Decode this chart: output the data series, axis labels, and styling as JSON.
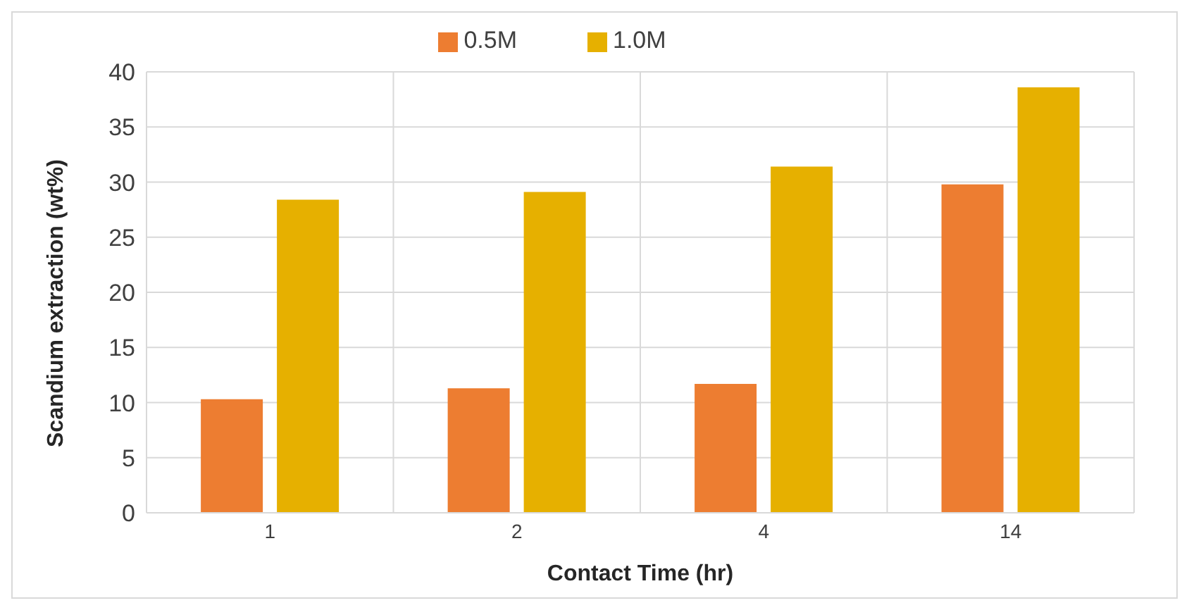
{
  "chart_data": {
    "type": "bar",
    "xlabel": "Contact Time (hr)",
    "ylabel": "Scandium extraction (wt%)",
    "categories": [
      "1",
      "2",
      "4",
      "14"
    ],
    "series": [
      {
        "name": "0.5M",
        "color": "#ed7d31",
        "values": [
          10.3,
          11.3,
          11.7,
          29.8
        ]
      },
      {
        "name": "1.0M",
        "color": "#e6b000",
        "values": [
          28.4,
          29.1,
          31.4,
          38.6
        ]
      }
    ],
    "ylim": [
      0,
      40
    ],
    "yticks": [
      0,
      5,
      10,
      15,
      20,
      25,
      30,
      35,
      40
    ],
    "grid": true,
    "legend": "top"
  }
}
